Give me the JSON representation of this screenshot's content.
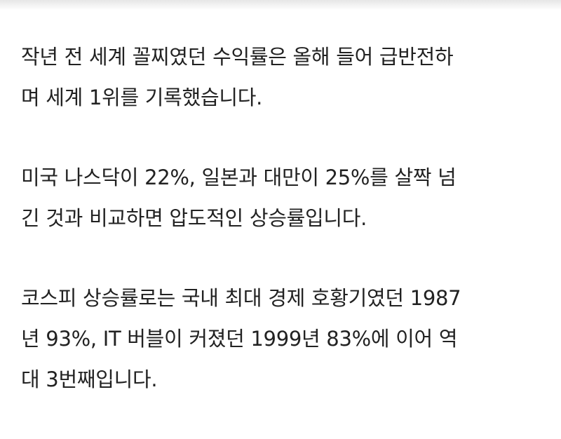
{
  "article": {
    "paragraphs": [
      {
        "lines": [
          "작년 전 세계 꼴찌였던 수익률은 올해 들어 급반전하",
          "며 세계 1위를 기록했습니다."
        ]
      },
      {
        "lines": [
          "미국 나스닥이 22%, 일본과 대만이 25%를 살짝 넘",
          "긴 것과 비교하면 압도적인 상승률입니다."
        ]
      },
      {
        "lines": [
          "코스피 상승률로는 국내 최대 경제 호황기였던 1987",
          "년 93%, IT 버블이 커졌던 1999년 83%에 이어 역",
          "대 3번째입니다."
        ]
      }
    ]
  }
}
